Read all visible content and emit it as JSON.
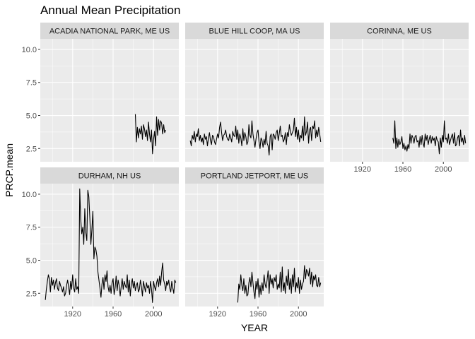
{
  "chart_data": {
    "type": "line",
    "title": "Annual Mean Precipitation",
    "xlabel": "YEAR",
    "ylabel": "PRCP.mean",
    "xlim": [
      1888,
      2025
    ],
    "ylim": [
      1.5,
      10.8
    ],
    "x_ticks": [
      1920,
      1960,
      2000
    ],
    "y_ticks": [
      2.5,
      5.0,
      7.5,
      10.0
    ],
    "y_tick_labels": [
      "2.5",
      "5.0",
      "7.5",
      "10.0"
    ],
    "panels": [
      {
        "name": "ACADIA NATIONAL PARK, ME US",
        "x": [
          1982,
          1983,
          1984,
          1985,
          1986,
          1987,
          1988,
          1989,
          1990,
          1991,
          1992,
          1993,
          1994,
          1995,
          1996,
          1997,
          1998,
          1999,
          2000,
          2001,
          2002,
          2003,
          2004,
          2005,
          2006,
          2007,
          2008,
          2009,
          2010,
          2011,
          2012
        ],
        "y": [
          5.1,
          3.0,
          4.1,
          3.3,
          4.0,
          3.6,
          4.2,
          3.2,
          4.3,
          4.0,
          3.4,
          3.9,
          3.1,
          4.5,
          3.6,
          3.0,
          3.9,
          2.1,
          3.2,
          3.8,
          2.7,
          4.9,
          3.5,
          4.7,
          3.9,
          4.6,
          4.4,
          3.6,
          4.3,
          3.7,
          3.9
        ]
      },
      {
        "name": "BLUE HILL COOP, MA US",
        "x": [
          1893,
          1894,
          1895,
          1896,
          1897,
          1898,
          1899,
          1900,
          1901,
          1902,
          1903,
          1904,
          1905,
          1906,
          1907,
          1908,
          1909,
          1910,
          1911,
          1912,
          1913,
          1914,
          1915,
          1916,
          1917,
          1918,
          1919,
          1920,
          1921,
          1922,
          1923,
          1924,
          1925,
          1926,
          1927,
          1928,
          1929,
          1930,
          1931,
          1932,
          1933,
          1934,
          1935,
          1936,
          1937,
          1938,
          1939,
          1940,
          1941,
          1942,
          1943,
          1944,
          1945,
          1946,
          1947,
          1948,
          1949,
          1950,
          1951,
          1952,
          1953,
          1954,
          1955,
          1956,
          1957,
          1958,
          1959,
          1960,
          1961,
          1962,
          1963,
          1964,
          1965,
          1966,
          1967,
          1968,
          1969,
          1970,
          1971,
          1972,
          1973,
          1974,
          1975,
          1976,
          1977,
          1978,
          1979,
          1980,
          1981,
          1982,
          1983,
          1984,
          1985,
          1986,
          1987,
          1988,
          1989,
          1990,
          1991,
          1992,
          1993,
          1994,
          1995,
          1996,
          1997,
          1998,
          1999,
          2000,
          2001,
          2002,
          2003,
          2004,
          2005,
          2006,
          2007,
          2008,
          2009,
          2010,
          2011,
          2012,
          2013,
          2014,
          2015,
          2016,
          2017,
          2018,
          2019,
          2020,
          2021,
          2022
        ],
        "y": [
          3.1,
          2.7,
          3.5,
          3.2,
          3.8,
          3.0,
          3.6,
          3.4,
          4.0,
          3.1,
          3.5,
          3.0,
          3.3,
          2.8,
          3.6,
          3.2,
          3.4,
          2.7,
          3.3,
          3.7,
          3.1,
          2.8,
          3.5,
          3.4,
          3.0,
          2.8,
          3.2,
          3.6,
          3.3,
          4.1,
          4.5,
          3.7,
          3.1,
          3.5,
          3.6,
          3.9,
          3.4,
          3.2,
          3.1,
          3.6,
          3.3,
          3.0,
          3.8,
          3.5,
          3.4,
          4.2,
          3.2,
          3.9,
          2.9,
          3.6,
          3.3,
          2.7,
          4.0,
          3.1,
          3.7,
          3.4,
          2.8,
          3.0,
          4.3,
          3.5,
          3.3,
          4.6,
          3.6,
          3.1,
          2.6,
          3.2,
          3.7,
          3.9,
          3.0,
          2.5,
          3.3,
          3.1,
          2.6,
          3.2,
          2.8,
          3.8,
          2.9,
          2.7,
          2.0,
          3.4,
          3.6,
          2.4,
          3.6,
          3.5,
          3.2,
          3.7,
          3.9,
          3.1,
          3.6,
          4.2,
          3.4,
          3.5,
          3.0,
          3.2,
          3.7,
          2.8,
          3.7,
          3.4,
          4.3,
          3.8,
          3.5,
          3.7,
          3.9,
          4.8,
          3.4,
          4.1,
          3.2,
          3.9,
          3.0,
          3.5,
          3.3,
          4.2,
          3.1,
          4.9,
          3.5,
          3.8,
          4.5,
          2.9,
          3.9,
          4.1,
          3.1,
          4.2,
          4.0,
          4.6,
          3.3,
          3.9,
          3.4,
          4.1,
          3.6,
          3.0
        ]
      },
      {
        "name": "CORINNA, ME US",
        "x": [
          1950,
          1951,
          1952,
          1953,
          1954,
          1955,
          1956,
          1957,
          1958,
          1959,
          1960,
          1961,
          1962,
          1963,
          1964,
          1965,
          1966,
          1967,
          1968,
          1969,
          1970,
          1971,
          1972,
          1973,
          1974,
          1975,
          1976,
          1977,
          1978,
          1979,
          1980,
          1981,
          1982,
          1983,
          1984,
          1985,
          1986,
          1987,
          1988,
          1989,
          1990,
          1991,
          1992,
          1993,
          1994,
          1995,
          1996,
          1997,
          1998,
          1999,
          2000,
          2001,
          2002,
          2003,
          2004,
          2005,
          2006,
          2007,
          2008,
          2009,
          2010,
          2011,
          2012,
          2013,
          2014,
          2015,
          2016,
          2017,
          2018,
          2019,
          2020,
          2021,
          2022
        ],
        "y": [
          3.3,
          2.9,
          4.6,
          2.5,
          3.3,
          2.6,
          3.2,
          2.8,
          3.0,
          3.4,
          2.5,
          2.9,
          2.4,
          2.7,
          2.3,
          2.8,
          2.5,
          3.6,
          2.9,
          3.5,
          3.3,
          2.9,
          3.4,
          3.5,
          3.0,
          3.1,
          2.6,
          3.4,
          2.8,
          3.5,
          2.9,
          2.6,
          3.6,
          3.1,
          3.5,
          2.8,
          3.2,
          3.5,
          2.9,
          3.4,
          3.1,
          3.3,
          2.7,
          3.4,
          3.1,
          3.0,
          2.1,
          3.3,
          2.6,
          3.5,
          3.0,
          4.6,
          3.2,
          3.3,
          2.9,
          3.6,
          2.8,
          3.1,
          3.4,
          3.6,
          2.9,
          3.7,
          2.7,
          2.8,
          3.3,
          3.5,
          2.7,
          3.9,
          3.0,
          3.3,
          2.8,
          3.5,
          2.9
        ]
      },
      {
        "name": "DURHAM, NH US",
        "x": [
          1893,
          1894,
          1895,
          1896,
          1897,
          1898,
          1899,
          1900,
          1901,
          1902,
          1903,
          1904,
          1905,
          1906,
          1907,
          1908,
          1909,
          1910,
          1911,
          1912,
          1913,
          1914,
          1915,
          1916,
          1917,
          1918,
          1919,
          1920,
          1921,
          1922,
          1923,
          1924,
          1925,
          1926,
          1927,
          1928,
          1929,
          1930,
          1931,
          1932,
          1933,
          1934,
          1935,
          1936,
          1937,
          1938,
          1939,
          1940,
          1941,
          1942,
          1943,
          1944,
          1945,
          1946,
          1947,
          1948,
          1949,
          1950,
          1951,
          1952,
          1953,
          1954,
          1955,
          1956,
          1957,
          1958,
          1959,
          1960,
          1961,
          1962,
          1963,
          1964,
          1965,
          1966,
          1967,
          1968,
          1969,
          1970,
          1971,
          1972,
          1973,
          1974,
          1975,
          1976,
          1977,
          1978,
          1979,
          1980,
          1981,
          1982,
          1983,
          1984,
          1985,
          1986,
          1987,
          1988,
          1989,
          1990,
          1991,
          1992,
          1993,
          1994,
          1995,
          1996,
          1997,
          1998,
          1999,
          2000,
          2001,
          2002,
          2003,
          2004,
          2005,
          2006,
          2007,
          2008,
          2009,
          2010,
          2011,
          2012,
          2013,
          2014,
          2015,
          2016,
          2017,
          2018,
          2019,
          2020,
          2021,
          2022
        ],
        "y": [
          2.0,
          2.8,
          3.4,
          3.9,
          3.6,
          2.6,
          3.7,
          3.1,
          3.5,
          2.8,
          3.3,
          3.6,
          2.9,
          2.7,
          3.4,
          3.1,
          2.9,
          2.6,
          3.0,
          2.3,
          2.5,
          3.1,
          3.5,
          3.0,
          2.4,
          3.4,
          2.8,
          3.9,
          2.9,
          2.6,
          3.6,
          2.8,
          3.0,
          2.5,
          10.4,
          8.1,
          7.0,
          7.5,
          6.2,
          8.9,
          7.1,
          6.5,
          10.3,
          9.8,
          8.2,
          6.2,
          7.3,
          8.7,
          5.1,
          6.0,
          5.8,
          5.3,
          4.1,
          3.5,
          2.9,
          2.2,
          3.2,
          3.7,
          2.8,
          3.9,
          3.4,
          4.2,
          3.0,
          2.6,
          3.1,
          2.5,
          3.3,
          3.6,
          2.4,
          2.9,
          3.8,
          2.7,
          3.5,
          3.1,
          2.3,
          3.0,
          3.6,
          2.8,
          3.4,
          3.1,
          2.9,
          3.9,
          2.6,
          3.5,
          2.3,
          3.2,
          3.6,
          2.9,
          3.4,
          2.7,
          3.1,
          3.3,
          2.6,
          2.8,
          3.5,
          3.0,
          2.3,
          3.4,
          3.0,
          2.6,
          3.3,
          2.9,
          3.1,
          2.5,
          3.4,
          2.8,
          1.8,
          3.4,
          3.0,
          2.7,
          3.3,
          3.6,
          3.0,
          3.8,
          3.1,
          4.1,
          4.8,
          3.5,
          3.2,
          2.7,
          3.4,
          3.1,
          3.5,
          2.9,
          2.6,
          3.4,
          2.9,
          2.5,
          3.5,
          3.3
        ]
      },
      {
        "name": "PORTLAND JETPORT, ME US",
        "x": [
          1940,
          1941,
          1942,
          1943,
          1944,
          1945,
          1946,
          1947,
          1948,
          1949,
          1950,
          1951,
          1952,
          1953,
          1954,
          1955,
          1956,
          1957,
          1958,
          1959,
          1960,
          1961,
          1962,
          1963,
          1964,
          1965,
          1966,
          1967,
          1968,
          1969,
          1970,
          1971,
          1972,
          1973,
          1974,
          1975,
          1976,
          1977,
          1978,
          1979,
          1980,
          1981,
          1982,
          1983,
          1984,
          1985,
          1986,
          1987,
          1988,
          1989,
          1990,
          1991,
          1992,
          1993,
          1994,
          1995,
          1996,
          1997,
          1998,
          1999,
          2000,
          2001,
          2002,
          2003,
          2004,
          2005,
          2006,
          2007,
          2008,
          2009,
          2010,
          2011,
          2012,
          2013,
          2014,
          2015,
          2016,
          2017,
          2018,
          2019,
          2020,
          2021,
          2022
        ],
        "y": [
          1.8,
          3.2,
          2.8,
          3.9,
          3.1,
          2.7,
          3.6,
          2.5,
          3.1,
          2.3,
          2.4,
          3.3,
          3.7,
          3.0,
          4.1,
          3.3,
          2.6,
          2.1,
          3.4,
          2.8,
          3.6,
          2.2,
          3.1,
          2.4,
          3.3,
          2.7,
          3.9,
          3.2,
          2.9,
          3.5,
          4.2,
          2.5,
          3.9,
          3.2,
          3.6,
          2.9,
          3.7,
          3.4,
          3.9,
          2.8,
          3.2,
          2.9,
          4.1,
          2.6,
          4.5,
          2.7,
          3.3,
          2.5,
          3.8,
          3.1,
          4.3,
          2.8,
          3.6,
          2.5,
          3.9,
          3.0,
          4.4,
          2.6,
          3.3,
          2.9,
          3.7,
          2.5,
          3.5,
          2.8,
          3.2,
          3.4,
          4.6,
          3.6,
          4.3,
          4.1,
          3.8,
          4.4,
          3.2,
          4.1,
          3.0,
          3.8,
          3.5,
          3.9,
          3.1,
          3.0,
          3.7,
          3.0,
          3.3
        ]
      }
    ]
  }
}
